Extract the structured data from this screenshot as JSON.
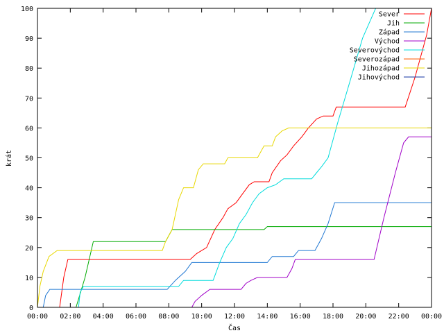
{
  "chart_data": {
    "type": "line",
    "xlabel": "Čas",
    "ylabel": "krát",
    "xlim": [
      0,
      24
    ],
    "ylim": [
      0,
      100
    ],
    "x_ticks": [
      "00:00",
      "02:00",
      "04:00",
      "06:00",
      "08:00",
      "10:00",
      "12:00",
      "14:00",
      "16:00",
      "18:00",
      "20:00",
      "22:00",
      "00:00"
    ],
    "y_ticks": [
      0,
      10,
      20,
      30,
      40,
      50,
      60,
      70,
      80,
      90,
      100
    ],
    "grid": false,
    "legend_position": "top-right",
    "series": [
      {
        "name": "Sever",
        "color": "#ff0000",
        "points": [
          [
            1.35,
            0
          ],
          [
            1.6,
            10
          ],
          [
            1.85,
            16
          ],
          [
            9.3,
            16
          ],
          [
            9.7,
            18
          ],
          [
            10.3,
            20
          ],
          [
            10.8,
            26
          ],
          [
            11.3,
            30
          ],
          [
            11.6,
            33
          ],
          [
            12.1,
            35
          ],
          [
            12.5,
            38
          ],
          [
            12.9,
            41
          ],
          [
            13.2,
            42
          ],
          [
            14.1,
            42
          ],
          [
            14.3,
            45
          ],
          [
            14.8,
            49
          ],
          [
            15.2,
            51
          ],
          [
            15.6,
            54
          ],
          [
            16.1,
            57
          ],
          [
            16.5,
            60
          ],
          [
            17.0,
            63
          ],
          [
            17.4,
            64
          ],
          [
            18.0,
            64
          ],
          [
            18.2,
            67
          ],
          [
            22.4,
            67
          ],
          [
            22.7,
            72
          ],
          [
            23.0,
            77
          ],
          [
            23.3,
            83
          ],
          [
            23.7,
            91
          ],
          [
            24.0,
            100
          ]
        ]
      },
      {
        "name": "Jih",
        "color": "#00aa00",
        "points": [
          [
            2.35,
            0
          ],
          [
            2.9,
            10
          ],
          [
            3.4,
            22
          ],
          [
            7.8,
            22
          ],
          [
            8.2,
            26
          ],
          [
            13.8,
            26
          ],
          [
            14.0,
            27
          ],
          [
            24.0,
            27
          ]
        ]
      },
      {
        "name": "Západ",
        "color": "#1f77d2",
        "points": [
          [
            0.35,
            0
          ],
          [
            0.5,
            4
          ],
          [
            0.75,
            6
          ],
          [
            7.9,
            6
          ],
          [
            8.4,
            9
          ],
          [
            9.0,
            12
          ],
          [
            9.4,
            15
          ],
          [
            14.0,
            15
          ],
          [
            14.3,
            17
          ],
          [
            15.6,
            17
          ],
          [
            15.9,
            19
          ],
          [
            16.9,
            19
          ],
          [
            17.3,
            23
          ],
          [
            17.7,
            28
          ],
          [
            18.1,
            35
          ],
          [
            24.0,
            35
          ]
        ]
      },
      {
        "name": "Východ",
        "color": "#a000c8",
        "points": [
          [
            9.4,
            0
          ],
          [
            9.6,
            2
          ],
          [
            10.0,
            4
          ],
          [
            10.5,
            6
          ],
          [
            12.4,
            6
          ],
          [
            12.7,
            8
          ],
          [
            13.0,
            9
          ],
          [
            13.4,
            10
          ],
          [
            15.2,
            10
          ],
          [
            15.5,
            13
          ],
          [
            15.7,
            16
          ],
          [
            20.5,
            16
          ],
          [
            21.1,
            30
          ],
          [
            21.8,
            45
          ],
          [
            22.3,
            55
          ],
          [
            22.6,
            57
          ],
          [
            24.0,
            57
          ]
        ]
      },
      {
        "name": "Severovýchod",
        "color": "#00dcdc",
        "points": [
          [
            2.5,
            0
          ],
          [
            2.6,
            5
          ],
          [
            2.8,
            7
          ],
          [
            8.6,
            7
          ],
          [
            8.9,
            9
          ],
          [
            10.7,
            9
          ],
          [
            11.1,
            15
          ],
          [
            11.5,
            20
          ],
          [
            11.9,
            23
          ],
          [
            12.3,
            28
          ],
          [
            12.7,
            31
          ],
          [
            13.1,
            35
          ],
          [
            13.5,
            38
          ],
          [
            14.0,
            40
          ],
          [
            14.5,
            41
          ],
          [
            15.0,
            43
          ],
          [
            16.7,
            43
          ],
          [
            17.0,
            45
          ],
          [
            17.3,
            47
          ],
          [
            17.7,
            50
          ],
          [
            18.3,
            62
          ],
          [
            19.0,
            75
          ],
          [
            19.8,
            90
          ],
          [
            20.6,
            100
          ]
        ]
      },
      {
        "name": "Severozápad",
        "color": "#ff5a00",
        "points": []
      },
      {
        "name": "Jihozápad",
        "color": "#e8d800",
        "points": [
          [
            0.0,
            0
          ],
          [
            0.15,
            7
          ],
          [
            0.35,
            12
          ],
          [
            0.7,
            17
          ],
          [
            1.2,
            19
          ],
          [
            7.6,
            19
          ],
          [
            7.8,
            22
          ],
          [
            8.2,
            26
          ],
          [
            8.4,
            31
          ],
          [
            8.6,
            36
          ],
          [
            8.9,
            40
          ],
          [
            9.5,
            40
          ],
          [
            9.8,
            46
          ],
          [
            10.1,
            48
          ],
          [
            11.4,
            48
          ],
          [
            11.6,
            50
          ],
          [
            13.4,
            50
          ],
          [
            13.8,
            54
          ],
          [
            14.3,
            54
          ],
          [
            14.5,
            57
          ],
          [
            14.9,
            59
          ],
          [
            15.3,
            60
          ],
          [
            24.0,
            60
          ]
        ]
      },
      {
        "name": "Jihovýchod",
        "color": "#1030a0",
        "points": []
      }
    ]
  }
}
